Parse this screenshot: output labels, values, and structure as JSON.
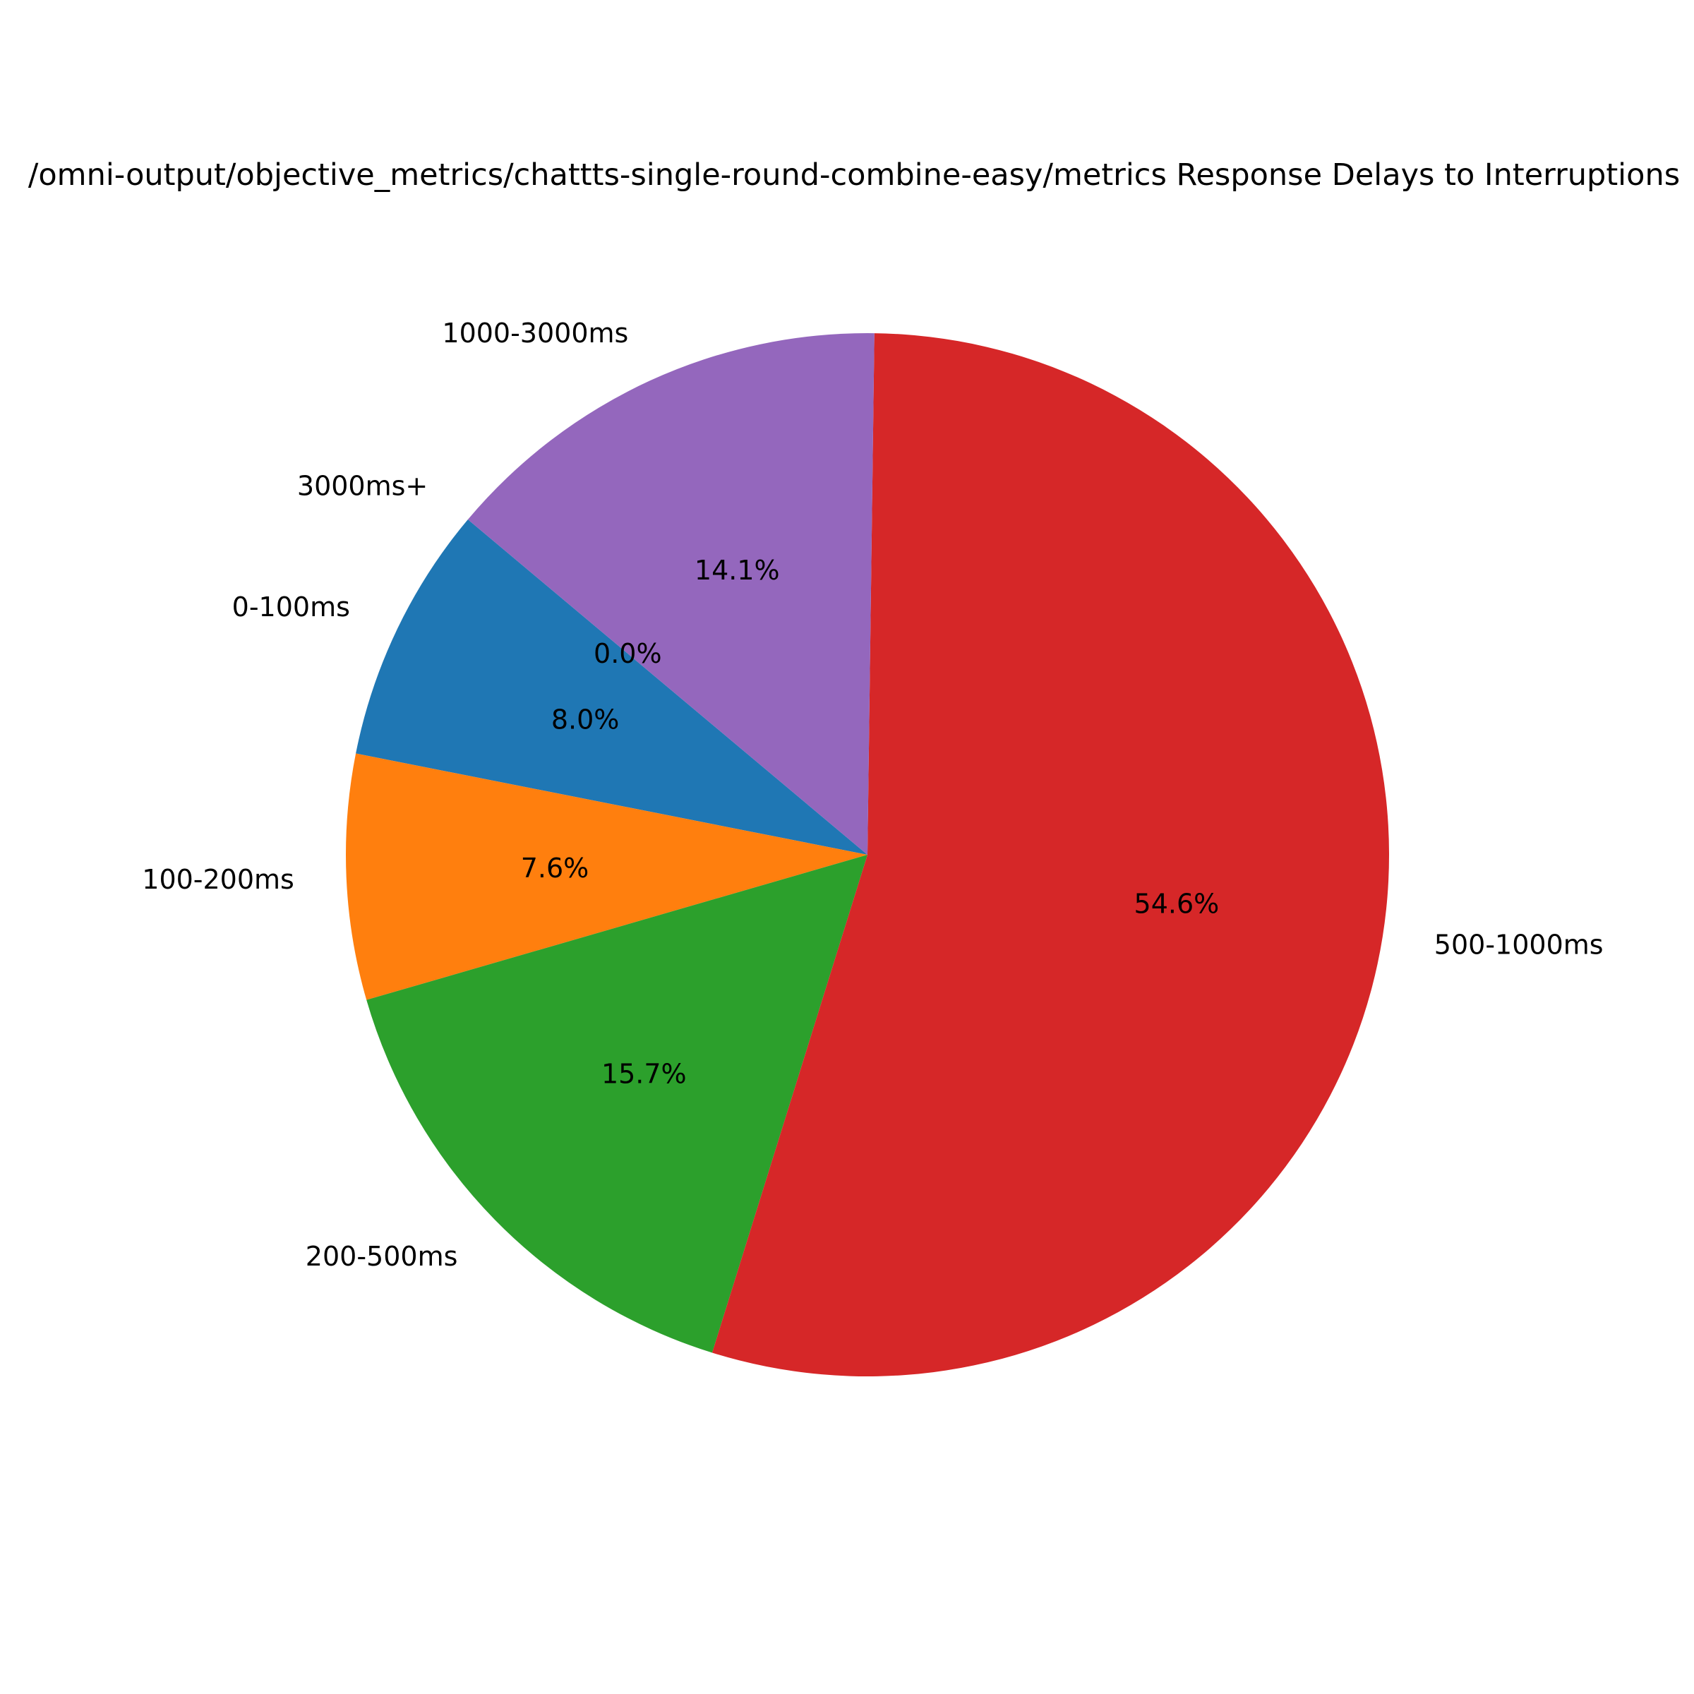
{
  "chart_data": {
    "type": "pie",
    "title": "/omni-output/objective_metrics/chattts-single-round-combine-easy/metrics Response Delays to Interruptions",
    "slices": [
      {
        "label": "0-100ms",
        "value": 8.0,
        "pct_label": "8.0%",
        "color": "#1f77b4"
      },
      {
        "label": "100-200ms",
        "value": 7.6,
        "pct_label": "7.6%",
        "color": "#ff7f0e"
      },
      {
        "label": "200-500ms",
        "value": 15.7,
        "pct_label": "15.7%",
        "color": "#2ca02c"
      },
      {
        "label": "500-1000ms",
        "value": 54.6,
        "pct_label": "54.6%",
        "color": "#d62728"
      },
      {
        "label": "1000-3000ms",
        "value": 14.1,
        "pct_label": "14.1%",
        "color": "#9467bd"
      },
      {
        "label": "3000ms+",
        "value": 0.0,
        "pct_label": "0.0%",
        "color": "#8c564b"
      }
    ],
    "start_angle_deg": 140,
    "direction": "counterclockwise",
    "legend": "none"
  }
}
